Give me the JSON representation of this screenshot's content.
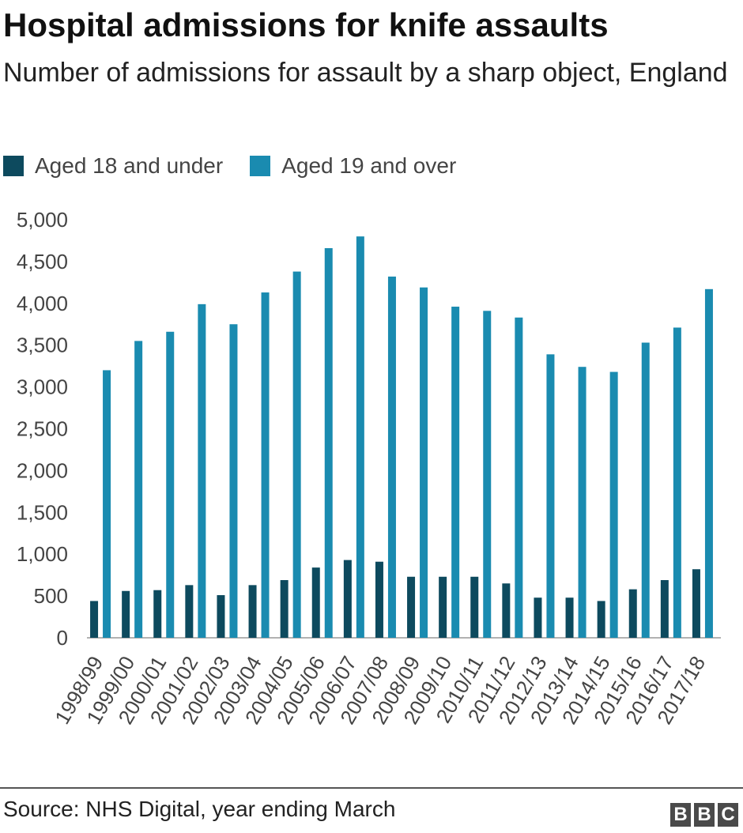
{
  "title": "Hospital admissions for knife assaults",
  "subtitle": "Number of admissions for assault by a sharp object, England",
  "source": "Source: NHS Digital, year ending March",
  "logo": [
    "B",
    "B",
    "C"
  ],
  "colors": {
    "series_under": "#0d4a5e",
    "series_over": "#1a8bb0",
    "axis": "#999999"
  },
  "chart_data": {
    "type": "bar",
    "categories": [
      "1998/99",
      "1999/00",
      "2000/01",
      "2001/02",
      "2002/03",
      "2003/04",
      "2004/05",
      "2005/06",
      "2006/07",
      "2007/08",
      "2008/09",
      "2009/10",
      "2010/11",
      "2011/12",
      "2012/13",
      "2013/14",
      "2014/15",
      "2015/16",
      "2016/17",
      "2017/18"
    ],
    "series": [
      {
        "name": "Aged 18 and under",
        "values": [
          440,
          560,
          570,
          630,
          510,
          630,
          690,
          840,
          930,
          910,
          730,
          730,
          730,
          650,
          480,
          480,
          440,
          580,
          690,
          820
        ]
      },
      {
        "name": "Aged 19 and over",
        "values": [
          3200,
          3550,
          3660,
          3990,
          3750,
          4130,
          4380,
          4660,
          4800,
          4320,
          4190,
          3960,
          3910,
          3830,
          3390,
          3240,
          3180,
          3530,
          3710,
          4170
        ]
      }
    ],
    "yticks": [
      "5,000",
      "4,500",
      "4,000",
      "3,500",
      "3,000",
      "2,500",
      "2,000",
      "1,500",
      "1,000",
      "500",
      "0"
    ],
    "ylim": [
      0,
      5000
    ],
    "grid": false,
    "legend_position": "top-left"
  }
}
